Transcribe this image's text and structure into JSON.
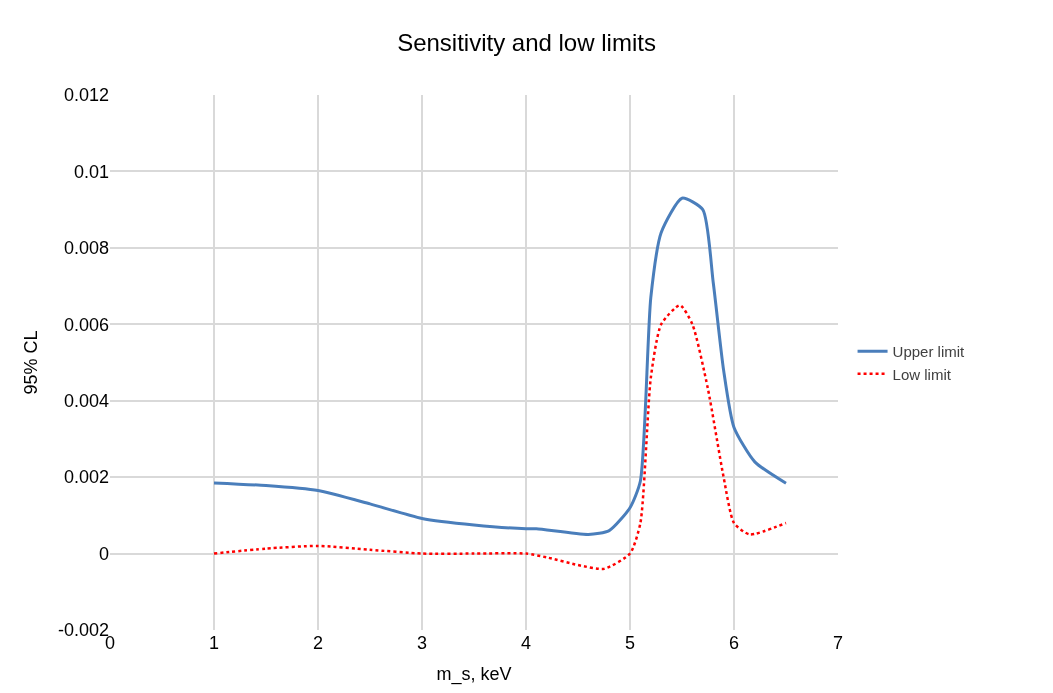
{
  "chart_data": {
    "type": "line",
    "title": "Sensitivity and low limits",
    "xlabel": "m_s, keV",
    "ylabel": "95% CL",
    "xlim": [
      0,
      7
    ],
    "xticks": [
      0,
      1,
      2,
      3,
      4,
      5,
      6,
      7
    ],
    "ylim": [
      -0.002,
      0.012
    ],
    "yticks": [
      -0.002,
      0,
      0.002,
      0.004,
      0.006,
      0.008,
      0.01,
      0.012
    ],
    "grid": true,
    "legend": "right",
    "marker": "none",
    "series": [
      {
        "name": "Upper limit",
        "color": "#4a7ebb",
        "line_style": "solid",
        "x": [
          1,
          1.5,
          2,
          2.5,
          3,
          3.5,
          4,
          4.1,
          4.6,
          4.8,
          5,
          5.1,
          5.2,
          5.3,
          5.5,
          5.7,
          5.8,
          5.9,
          6,
          6.2,
          6.5
        ],
        "values": [
          0.00185,
          0.00178,
          0.00165,
          0.0013,
          0.00092,
          0.00075,
          0.00065,
          0.00065,
          0.0005,
          0.0006,
          0.0012,
          0.0019,
          0.0067,
          0.0084,
          0.0093,
          0.009,
          0.0071,
          0.0048,
          0.0033,
          0.0024,
          0.00184
        ]
      },
      {
        "name": "Low limit",
        "color": "#ff0000",
        "line_style": "dotted",
        "x": [
          1,
          1.5,
          2,
          2.5,
          3,
          3.5,
          4,
          4.2,
          4.5,
          4.75,
          5,
          5.1,
          5.2,
          5.3,
          5.48,
          5.6,
          5.75,
          5.9,
          6,
          6.15,
          6.5
        ],
        "values": [
          0,
          0.00013,
          0.0002,
          0.0001,
          0,
          0,
          0,
          -0.0001,
          -0.0003,
          -0.0004,
          0,
          0.0008,
          0.0046,
          0.006,
          0.0065,
          0.006,
          0.0043,
          0.002,
          0.0008,
          0.0005,
          0.0008
        ]
      }
    ]
  }
}
